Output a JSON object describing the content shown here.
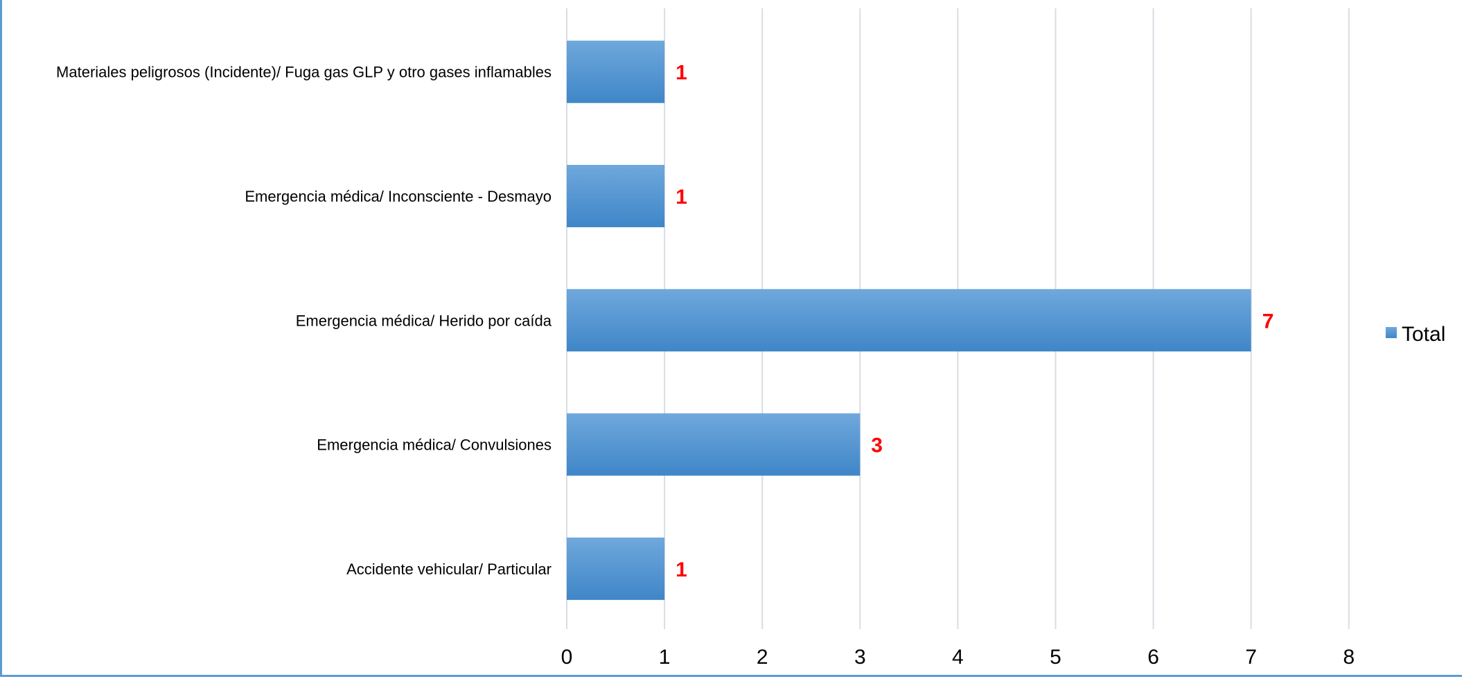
{
  "chart_data": {
    "type": "bar",
    "orientation": "horizontal",
    "categories": [
      "Accidente vehicular/ Particular",
      "Emergencia médica/ Convulsiones",
      "Emergencia médica/ Herido por caída",
      "Emergencia médica/ Inconsciente - Desmayo",
      "Materiales peligrosos (Incidente)/ Fuga gas GLP y otro gases inflamables"
    ],
    "series": [
      {
        "name": "Total",
        "values": [
          1,
          3,
          7,
          1,
          1
        ]
      }
    ],
    "xlim": [
      0,
      8
    ],
    "x_ticks": [
      "0",
      "1",
      "2",
      "3",
      "4",
      "5",
      "6",
      "7",
      "8"
    ],
    "grid": "vertical",
    "legend": "right",
    "colors": {
      "bar_top": "#6fa8dc",
      "bar_bottom": "#3f86c8",
      "data_label": "#ff0000",
      "gridline": "#d9dde3",
      "frame": "#5b9bd5"
    }
  }
}
